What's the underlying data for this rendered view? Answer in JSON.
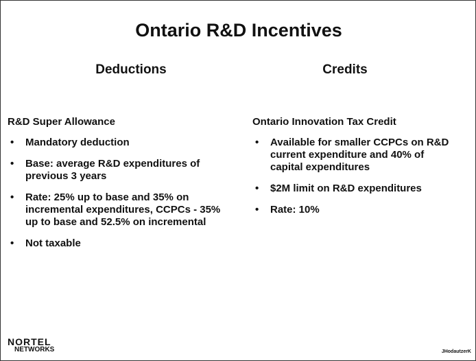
{
  "title": "Ontario R&D Incentives",
  "columns": [
    {
      "heading": "Deductions",
      "subheading": "R&D Super Allowance",
      "bullets": [
        "Mandatory deduction",
        "Base: average R&D expenditures of previous 3 years",
        "Rate: 25% up to base and 35% on incremental expenditures, CCPCs - 35% up to base and 52.5% on incremental",
        "Not taxable"
      ]
    },
    {
      "heading": "Credits",
      "subheading": "Ontario Innovation Tax Credit",
      "bullets": [
        "Available for smaller CCPCs on R&D current expenditure and 40% of capital expenditures",
        "$2M limit on R&D expenditures",
        "Rate: 10%"
      ]
    }
  ],
  "footer": {
    "logo_top": "NORTEL",
    "logo_bottom": "NETWORKS",
    "note": "JHodautzerK"
  }
}
